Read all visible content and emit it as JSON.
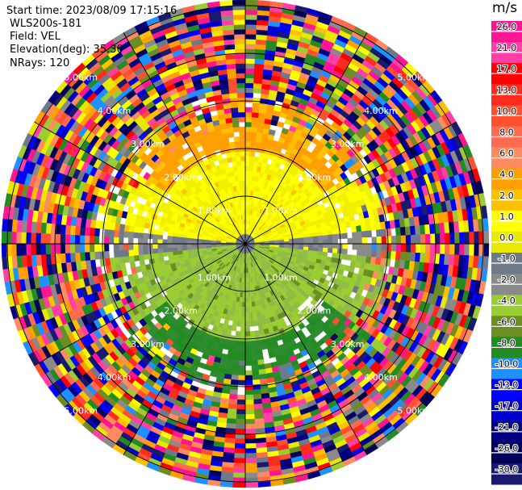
{
  "header": {
    "start_time": "Start time: 2023/08/09 17:15:16",
    "instrument": "WLS200s-181",
    "field": "Field: VEL",
    "elevation": "Elevation(deg): 35.30",
    "nrays": "NRays: 120"
  },
  "chart_data": {
    "type": "heatmap",
    "projection": "polar-ppi",
    "field": "VEL",
    "unit": "m/s",
    "nrays": 120,
    "elevation_deg": 35.3,
    "ring_labels": [
      "1.00km",
      "2.00km",
      "3.00km",
      "4.00km",
      "5.00km"
    ],
    "spoke_count": 12,
    "colorbar": {
      "unit_label": "m/s",
      "ticks": [
        "26.0",
        "21.0",
        "17.0",
        "13.0",
        "10.0",
        "8.0",
        "6.0",
        "4.0",
        "2.0",
        "1.0",
        "0.0",
        "-1.0",
        "-2.0",
        "-4.0",
        "-6.0",
        "-8.0",
        "-10.0",
        "-13.0",
        "-17.0",
        "-21.0",
        "-26.0",
        "-30.0"
      ],
      "colors": [
        "#ff1493",
        "#ff3fa6",
        "#ff0000",
        "#ff2b1f",
        "#ff5030",
        "#ff6a50",
        "#ff8c60",
        "#ffa000",
        "#ffc000",
        "#ffff00",
        "#e8e800",
        "#6e7a8a",
        "#8a8a8a",
        "#9acd32",
        "#6b8e23",
        "#228b22",
        "#1e90ff",
        "#0000ff",
        "#0000cd",
        "#000080",
        "#00005a",
        "#191970"
      ]
    },
    "velocity_pattern": {
      "description_free": true,
      "inner_north": "positive (yellow/orange)",
      "inner_south": "negative (green)",
      "near_center_band": "near zero (gray)",
      "outer": "noise (mixed colors)"
    }
  }
}
